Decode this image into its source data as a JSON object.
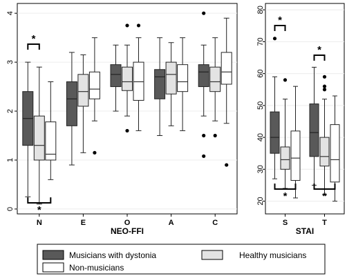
{
  "chart_data": [
    {
      "type": "boxplot",
      "xlabel": "NEO-FFI",
      "ylim": [
        -0.1,
        4.2
      ],
      "yticks": [
        0,
        1,
        2,
        3,
        4
      ],
      "categories": [
        "N",
        "E",
        "O",
        "A",
        "C"
      ],
      "series": [
        {
          "name": "Musicians with dystonia",
          "color": "#595959",
          "boxes": [
            {
              "min": 0.25,
              "q1": 1.3,
              "median": 1.85,
              "q3": 2.4,
              "max": 3.0,
              "outliers": []
            },
            {
              "min": 0.9,
              "q1": 1.7,
              "median": 2.25,
              "q3": 2.6,
              "max": 3.2,
              "outliers": []
            },
            {
              "min": 2.0,
              "q1": 2.5,
              "median": 2.75,
              "q3": 2.95,
              "max": 3.35,
              "outliers": []
            },
            {
              "min": 1.5,
              "q1": 2.25,
              "median": 2.7,
              "q3": 2.85,
              "max": 3.5,
              "outliers": []
            },
            {
              "min": 1.9,
              "q1": 2.5,
              "median": 2.8,
              "q3": 2.95,
              "max": 3.35,
              "outliers": [
                4.0,
                1.5,
                1.08
              ]
            }
          ]
        },
        {
          "name": "Healthy musicians",
          "color": "#e3e3e3",
          "boxes": [
            {
              "min": 0.1,
              "q1": 1.0,
              "median": 1.3,
              "q3": 1.9,
              "max": 2.9,
              "outliers": []
            },
            {
              "min": 1.15,
              "q1": 2.1,
              "median": 2.4,
              "q3": 2.75,
              "max": 3.15,
              "outliers": []
            },
            {
              "min": 1.9,
              "q1": 2.42,
              "median": 2.6,
              "q3": 2.9,
              "max": 3.35,
              "outliers": [
                3.75,
                1.6
              ]
            },
            {
              "min": 1.7,
              "q1": 2.35,
              "median": 2.75,
              "q3": 3.0,
              "max": 3.4,
              "outliers": []
            },
            {
              "min": 1.8,
              "q1": 2.4,
              "median": 2.6,
              "q3": 2.9,
              "max": 3.5,
              "outliers": [
                1.5
              ]
            }
          ]
        },
        {
          "name": "Non-musicians",
          "color": "#ffffff",
          "boxes": [
            {
              "min": 0.6,
              "q1": 1.0,
              "median": 1.12,
              "q3": 1.78,
              "max": 2.6,
              "outliers": []
            },
            {
              "min": 1.8,
              "q1": 2.25,
              "median": 2.45,
              "q3": 2.8,
              "max": 3.5,
              "outliers": [
                1.15
              ]
            },
            {
              "min": 1.6,
              "q1": 2.22,
              "median": 2.6,
              "q3": 3.0,
              "max": 3.5,
              "outliers": [
                3.75
              ]
            },
            {
              "min": 1.6,
              "q1": 2.4,
              "median": 2.6,
              "q3": 2.95,
              "max": 3.5,
              "outliers": []
            },
            {
              "min": 1.75,
              "q1": 2.55,
              "median": 2.8,
              "q3": 3.2,
              "max": 3.9,
              "outliers": [
                0.9
              ]
            }
          ]
        }
      ],
      "annotations": [
        {
          "text": "*",
          "between": [
            "Musicians with dystonia",
            "Healthy musicians"
          ],
          "category": "N",
          "position": "above"
        },
        {
          "text": "*",
          "between": [
            "Musicians with dystonia",
            "Non-musicians"
          ],
          "category": "N",
          "position": "below"
        }
      ]
    },
    {
      "type": "boxplot",
      "xlabel": "STAI",
      "ylim": [
        16,
        82
      ],
      "yticks": [
        20,
        30,
        40,
        50,
        60,
        70,
        80
      ],
      "categories": [
        "S",
        "T"
      ],
      "series": [
        {
          "name": "Musicians with dystonia",
          "color": "#595959",
          "boxes": [
            {
              "min": 27,
              "q1": 35,
              "median": 40,
              "q3": 48,
              "max": 59,
              "outliers": [
                71
              ]
            },
            {
              "min": 25,
              "q1": 34,
              "median": 41.5,
              "q3": 50.5,
              "max": 62,
              "outliers": []
            }
          ]
        },
        {
          "name": "Healthy musicians",
          "color": "#e3e3e3",
          "boxes": [
            {
              "min": 24,
              "q1": 30,
              "median": 33,
              "q3": 37,
              "max": 52,
              "outliers": [
                58
              ]
            },
            {
              "min": 22,
              "q1": 31,
              "median": 34,
              "q3": 40,
              "max": 52,
              "outliers": [
                59,
                56,
                55
              ]
            }
          ]
        },
        {
          "name": "Non-musicians",
          "color": "#ffffff",
          "boxes": [
            {
              "min": 21,
              "q1": 26.5,
              "median": 33.5,
              "q3": 42,
              "max": 56,
              "outliers": []
            },
            {
              "min": 20,
              "q1": 26,
              "median": 33,
              "q3": 44,
              "max": 53,
              "outliers": []
            }
          ]
        }
      ],
      "annotations": [
        {
          "text": "*",
          "between": [
            "Musicians with dystonia",
            "Healthy musicians"
          ],
          "category": "S",
          "position": "above"
        },
        {
          "text": "*",
          "between": [
            "Musicians with dystonia",
            "Healthy musicians"
          ],
          "category": "T",
          "position": "above"
        },
        {
          "text": "*",
          "between": [
            "Musicians with dystonia",
            "Non-musicians"
          ],
          "category": "S",
          "position": "below"
        },
        {
          "text": "*",
          "between": [
            "Musicians with dystonia",
            "Non-musicians"
          ],
          "category": "T",
          "position": "below"
        }
      ]
    }
  ],
  "legend": [
    {
      "label": "Musicians with dystonia",
      "color": "#595959"
    },
    {
      "label": "Healthy musicians",
      "color": "#e3e3e3"
    },
    {
      "label": "Non-musicians",
      "color": "#ffffff"
    }
  ]
}
